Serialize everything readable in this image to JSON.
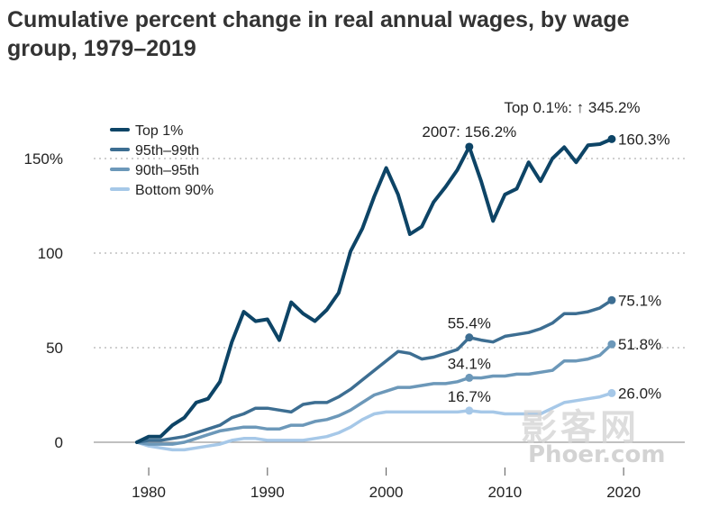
{
  "title": "Cumulative percent change in real annual wages, by wage group, 1979–2019",
  "watermark": {
    "line1": "影客网",
    "line2": "Phoer.com"
  },
  "chart_data": {
    "type": "line",
    "title": "Cumulative percent change in real annual wages, by wage group, 1979–2019",
    "xlabel": "",
    "ylabel": "",
    "xlim": [
      1974,
      2025
    ],
    "ylim": [
      -10,
      170
    ],
    "x_ticks": [
      1980,
      1990,
      2000,
      2010,
      2020
    ],
    "x_tick_labels": [
      "1980",
      "1990",
      "2000",
      "2010",
      "2020"
    ],
    "y_ticks": [
      0,
      50,
      100,
      150
    ],
    "y_tick_labels": [
      "0",
      "50",
      "100",
      "150%"
    ],
    "x": [
      1979,
      1980,
      1981,
      1982,
      1983,
      1984,
      1985,
      1986,
      1987,
      1988,
      1989,
      1990,
      1991,
      1992,
      1993,
      1994,
      1995,
      1996,
      1997,
      1998,
      1999,
      2000,
      2001,
      2002,
      2003,
      2004,
      2005,
      2006,
      2007,
      2008,
      2009,
      2010,
      2011,
      2012,
      2013,
      2014,
      2015,
      2016,
      2017,
      2018,
      2019
    ],
    "series": [
      {
        "name": "Top 1%",
        "color": "#0d4466",
        "values": [
          0,
          3,
          3,
          9,
          13,
          21,
          23,
          32,
          53,
          69,
          64,
          65,
          54,
          74,
          68,
          64,
          70,
          79,
          101,
          113,
          130,
          145,
          131,
          110,
          114,
          127,
          135,
          144,
          156.2,
          138,
          117,
          131,
          134,
          148,
          138,
          150,
          156,
          148,
          157,
          157.6,
          160.3
        ]
      },
      {
        "name": "95th–99th",
        "color": "#3d6e92",
        "values": [
          0,
          1,
          1,
          2,
          3,
          5,
          7,
          9,
          13,
          15,
          18,
          18,
          17,
          16,
          20,
          21,
          21,
          24,
          28,
          33,
          38,
          43,
          48,
          47,
          44,
          45,
          47,
          49,
          55.4,
          54,
          53,
          56,
          57,
          58,
          60,
          63,
          68,
          68,
          69,
          71,
          75.1
        ]
      },
      {
        "name": "90th–95th",
        "color": "#6c98b9",
        "values": [
          0,
          -1,
          -1,
          -1,
          0,
          2,
          4,
          6,
          7,
          8,
          8,
          7,
          7,
          9,
          9,
          11,
          12,
          14,
          17,
          21,
          25,
          27,
          29,
          29,
          30,
          31,
          31,
          32,
          34.1,
          34,
          35,
          35,
          36,
          36,
          37,
          38,
          43,
          43,
          44,
          46,
          51.8
        ]
      },
      {
        "name": "Bottom 90%",
        "color": "#a6c8e8",
        "values": [
          0,
          -2,
          -3,
          -4,
          -4,
          -3,
          -2,
          -1,
          1,
          2,
          2,
          1,
          1,
          1,
          1,
          2,
          3,
          5,
          8,
          12,
          15,
          16,
          16,
          16,
          16,
          16,
          16,
          16,
          16.7,
          16,
          16,
          15,
          15,
          15,
          15,
          18,
          21,
          22,
          23,
          24,
          26.0
        ]
      }
    ],
    "markers": [
      {
        "series": 0,
        "x": 2007,
        "y": 156.2,
        "label": "2007: 156.2%"
      },
      {
        "series": 0,
        "x": 2019,
        "y": 160.3,
        "label": "160.3%"
      },
      {
        "series": 1,
        "x": 2007,
        "y": 55.4,
        "label": "55.4%"
      },
      {
        "series": 1,
        "x": 2019,
        "y": 75.1,
        "label": "75.1%"
      },
      {
        "series": 2,
        "x": 2007,
        "y": 34.1,
        "label": "34.1%"
      },
      {
        "series": 2,
        "x": 2019,
        "y": 51.8,
        "label": "51.8%"
      },
      {
        "series": 3,
        "x": 2007,
        "y": 16.7,
        "label": "16.7%"
      },
      {
        "series": 3,
        "x": 2019,
        "y": 26.0,
        "label": "26.0%"
      }
    ],
    "top_annotation": {
      "text": "Top 0.1%: ↑ 345.2%",
      "x": 2019
    },
    "legend_position": "top-left",
    "grid": "dotted horizontal"
  }
}
